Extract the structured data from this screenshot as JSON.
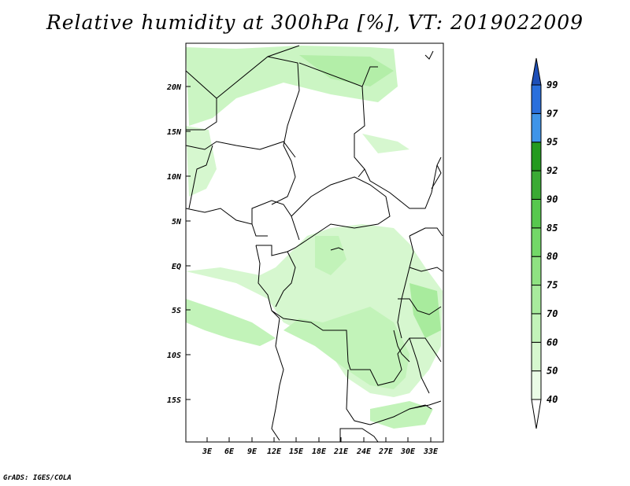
{
  "title": "Relative humidity at 300hPa [%], VT: 2019022009",
  "credit": "GrADS: IGES/COLA",
  "map": {
    "lon_labels": [
      "3E",
      "6E",
      "9E",
      "12E",
      "15E",
      "18E",
      "21E",
      "24E",
      "27E",
      "30E",
      "33E"
    ],
    "lat_labels": [
      "20N",
      "15N",
      "10N",
      "5N",
      "EQ",
      "5S",
      "10S",
      "15S"
    ]
  },
  "colorbar": {
    "levels": [
      "40",
      "50",
      "60",
      "70",
      "75",
      "80",
      "85",
      "90",
      "92",
      "95",
      "97",
      "99"
    ],
    "colors": [
      "#eafbe6",
      "#d6f7cf",
      "#c2f3b9",
      "#a8eb9d",
      "#8fe282",
      "#73d868",
      "#57c84e",
      "#3aaa34",
      "#249a1f",
      "#3f94e8",
      "#2a6fdc",
      "#1e4fb8"
    ]
  }
}
